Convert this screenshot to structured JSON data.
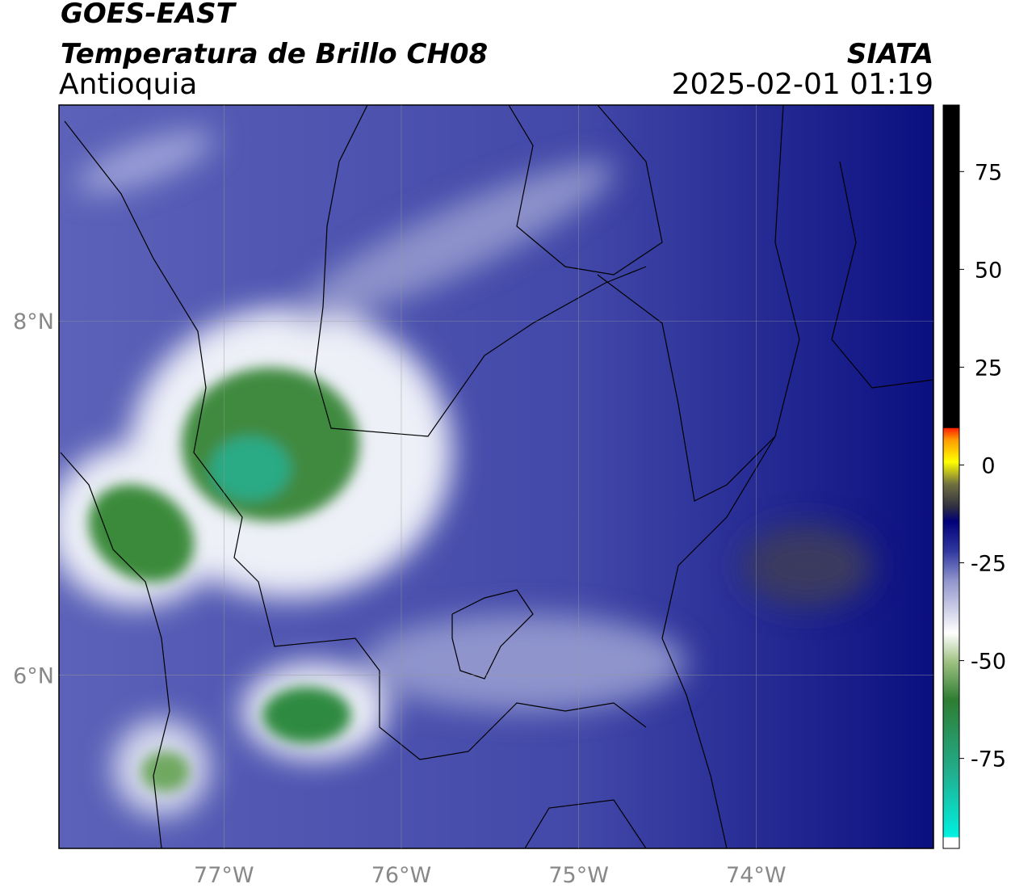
{
  "map": {
    "title": "GOES-EAST",
    "subtitle": "Temperatura de Brillo CH08",
    "region": "Antioquia",
    "source": "SIATA",
    "datetime": "2025-02-01 01:19",
    "xlim": [
      -77.93,
      -73.0
    ],
    "ylim": [
      5.02,
      9.22
    ],
    "xticks": [
      {
        "value": -77,
        "label": "77°W"
      },
      {
        "value": -76,
        "label": "76°W"
      },
      {
        "value": -75,
        "label": "75°W"
      },
      {
        "value": -74,
        "label": "74°W"
      }
    ],
    "yticks": [
      {
        "value": 6,
        "label": "6°N"
      },
      {
        "value": 8,
        "label": "8°N"
      }
    ],
    "grid": true,
    "colorbar": {
      "clim": [
        -98,
        92
      ],
      "ticks": [
        75,
        50,
        25,
        0,
        -25,
        -50,
        -75
      ]
    }
  }
}
